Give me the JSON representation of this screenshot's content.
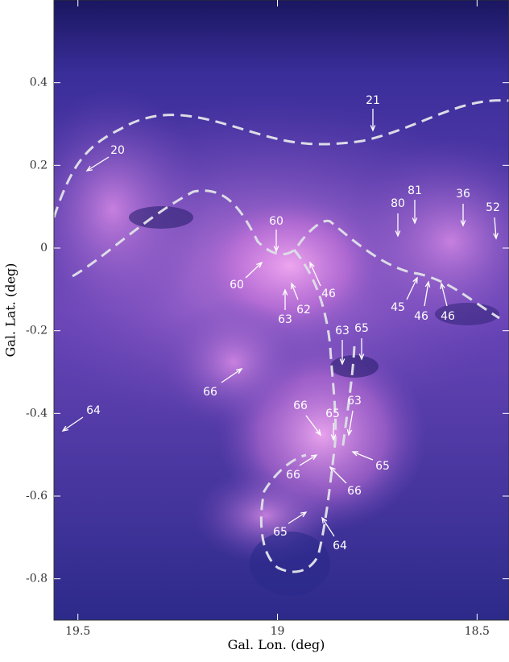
{
  "chart_data": {
    "type": "image",
    "xlabel": "Gal. Lon. (deg)",
    "ylabel": "Gal. Lat. (deg)",
    "xlim": [
      19.56,
      18.42
    ],
    "ylim": [
      -0.9,
      0.6
    ],
    "xticks": [
      19.5,
      19,
      18.5
    ],
    "yticks": [
      0.4,
      0.2,
      0,
      -0.2,
      -0.4,
      -0.6,
      -0.8
    ],
    "annotations": [
      "20",
      "21",
      "80",
      "81",
      "36",
      "52",
      "60",
      "60",
      "46",
      "63",
      "62",
      "45",
      "46",
      "46",
      "63",
      "65",
      "66",
      "64",
      "66",
      "65",
      "63",
      "66",
      "65",
      "66",
      "65",
      "64"
    ]
  }
}
